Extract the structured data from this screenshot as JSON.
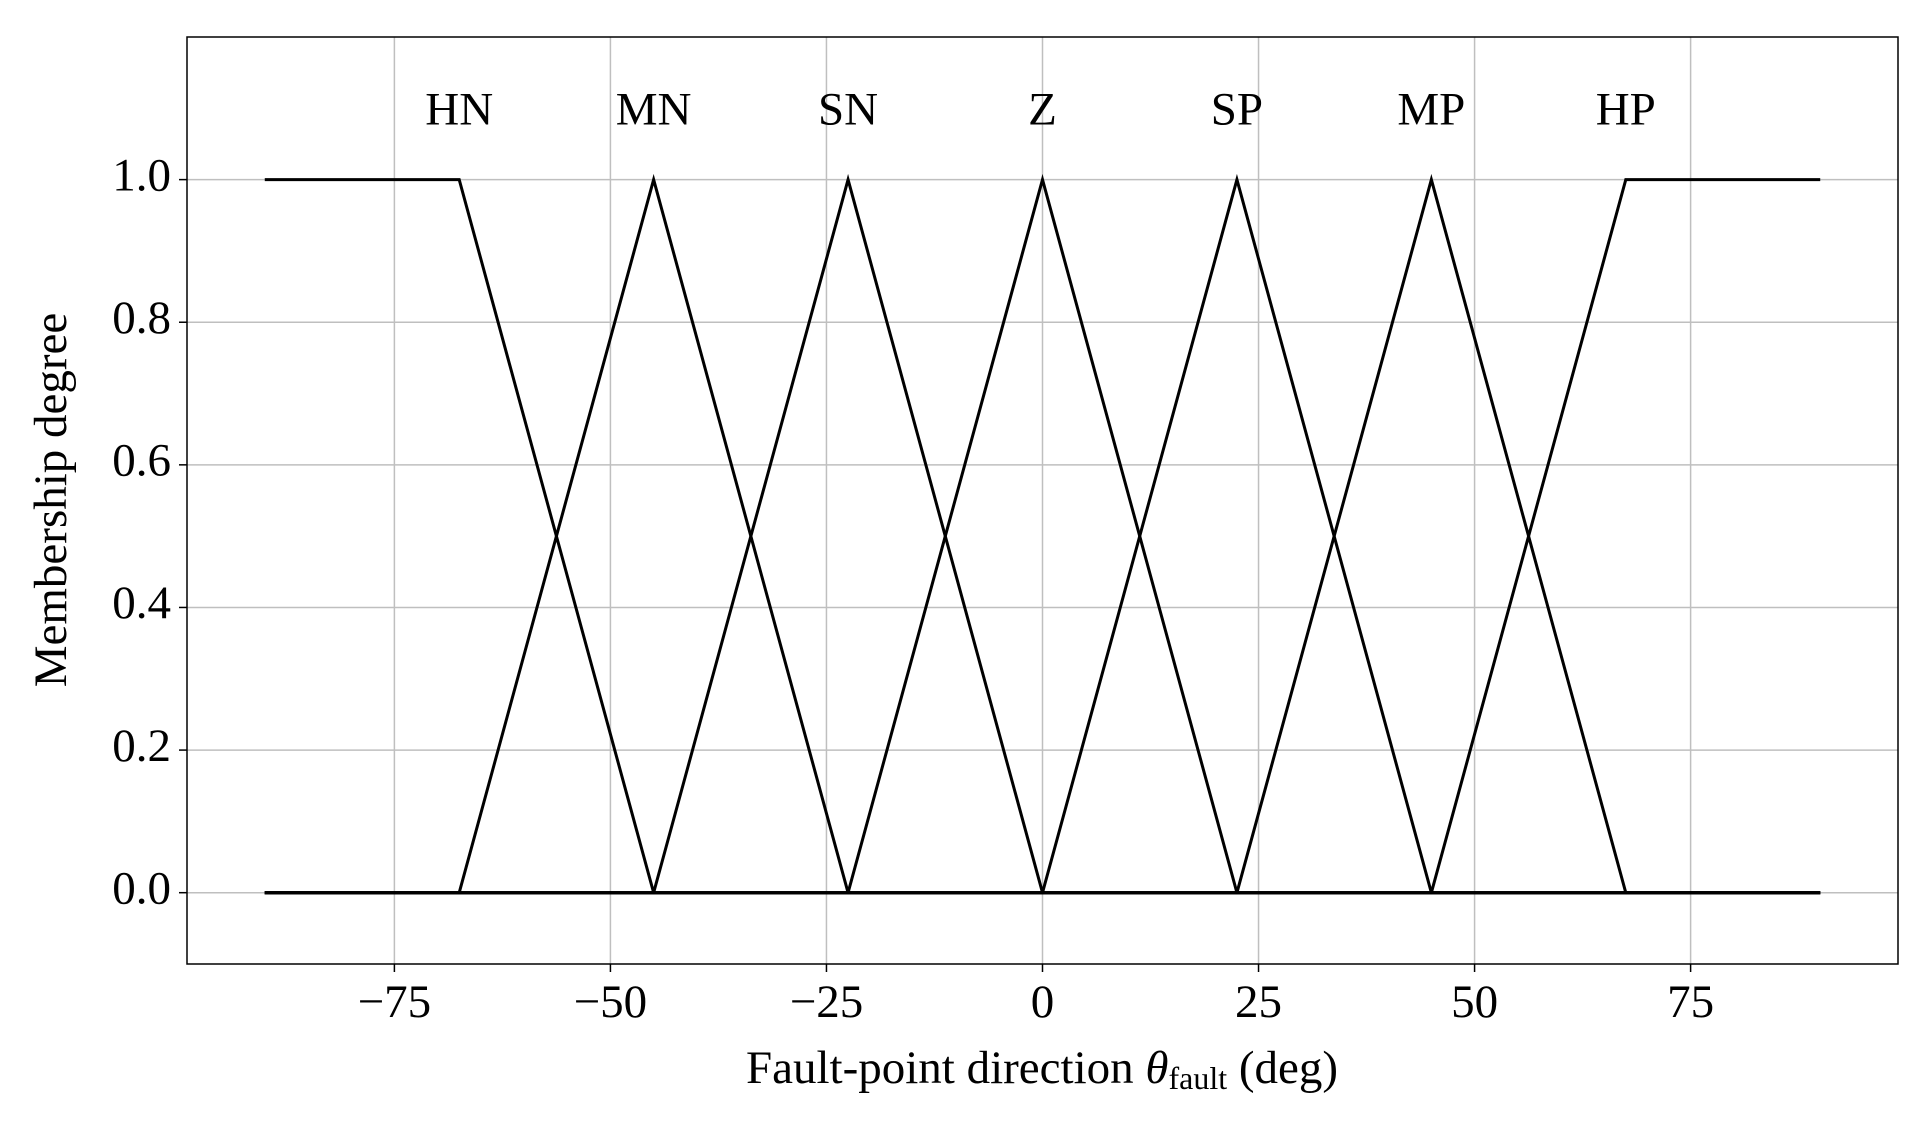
{
  "chart_data": {
    "type": "line",
    "x_label": {
      "text": "Fault-point direction ",
      "symbol": "θ",
      "subscript": "fault",
      "unit": " (deg)"
    },
    "y_label": "Membership degree",
    "xlim": [
      -99,
      99
    ],
    "ylim": [
      -0.1,
      1.2
    ],
    "xticks": [
      {
        "value": -75,
        "label": "−75"
      },
      {
        "value": -50,
        "label": "−50"
      },
      {
        "value": -25,
        "label": "−25"
      },
      0,
      25,
      50,
      75
    ],
    "yticks": [
      {
        "value": 0,
        "label": "0.0"
      },
      {
        "value": 0.2,
        "label": "0.2"
      },
      {
        "value": 0.4,
        "label": "0.4"
      },
      {
        "value": 0.6,
        "label": "0.6"
      },
      {
        "value": 0.8,
        "label": "0.8"
      },
      {
        "value": 1,
        "label": "1.0"
      }
    ],
    "grid": true,
    "series": [
      {
        "name": "HN",
        "color": "#000000",
        "x": [
          -90,
          -67.5,
          -45,
          90
        ],
        "values": [
          1,
          1,
          0,
          0
        ]
      },
      {
        "name": "MN",
        "color": "#000000",
        "x": [
          -90,
          -67.5,
          -45,
          -22.5,
          90
        ],
        "values": [
          0,
          0,
          1,
          0,
          0
        ]
      },
      {
        "name": "SN",
        "color": "#000000",
        "x": [
          -90,
          -45,
          -22.5,
          0,
          90
        ],
        "values": [
          0,
          0,
          1,
          0,
          0
        ]
      },
      {
        "name": "Z",
        "color": "#000000",
        "x": [
          -90,
          -22.5,
          0,
          22.5,
          90
        ],
        "values": [
          0,
          0,
          1,
          0,
          0
        ]
      },
      {
        "name": "SP",
        "color": "#000000",
        "x": [
          -90,
          0,
          22.5,
          45,
          90
        ],
        "values": [
          0,
          0,
          1,
          0,
          0
        ]
      },
      {
        "name": "MP",
        "color": "#000000",
        "x": [
          -90,
          22.5,
          45,
          67.5,
          90
        ],
        "values": [
          0,
          0,
          1,
          0,
          0
        ]
      },
      {
        "name": "HP",
        "color": "#000000",
        "x": [
          -90,
          45,
          67.5,
          90
        ],
        "values": [
          0,
          0,
          1,
          1
        ]
      }
    ]
  }
}
